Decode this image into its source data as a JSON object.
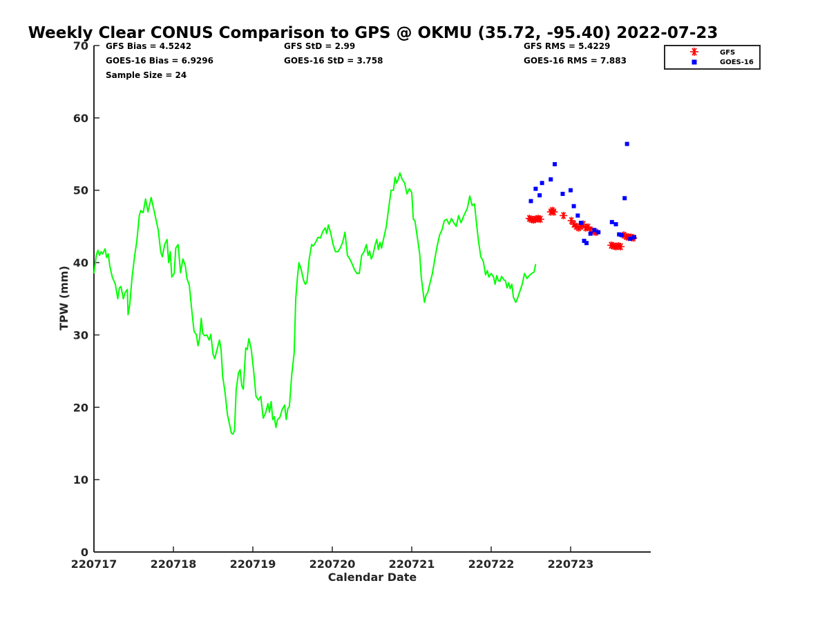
{
  "chart_data": {
    "type": "line",
    "title": "Weekly Clear CONUS Comparison to GPS @ OKMU (35.72, -95.40) 2022-07-23",
    "xlabel": "Calendar Date",
    "ylabel": "TPW (mm)",
    "x_unit": "day",
    "xlim": [
      220717,
      220723.96
    ],
    "ylim": [
      0,
      70
    ],
    "x_ticks": [
      {
        "value": 220717,
        "label": "220717"
      },
      {
        "value": 220718,
        "label": "220718"
      },
      {
        "value": 220719,
        "label": "220719"
      },
      {
        "value": 220720,
        "label": "220720"
      },
      {
        "value": 220721,
        "label": "220721"
      },
      {
        "value": 220722,
        "label": "220722"
      },
      {
        "value": 220723,
        "label": "220723"
      }
    ],
    "y_ticks": [
      0,
      10,
      20,
      30,
      40,
      50,
      60,
      70
    ],
    "grid": false,
    "legend_position": "top-right",
    "stats": {
      "gfs_bias": "GFS Bias = 4.5242",
      "goes_bias": "GOES-16 Bias = 6.9296",
      "sample_size": "Sample Size = 24",
      "gfs_std": "GFS StD = 2.99",
      "goes_std": "GOES-16 StD = 3.758",
      "gfs_rms": "GFS RMS = 5.4229",
      "goes_rms": "GOES-16 RMS = 7.883"
    },
    "series": [
      {
        "name": "",
        "kind": "line",
        "color": "#00ff00",
        "points": [
          [
            220717.0,
            38.5
          ],
          [
            220717.03,
            41.0
          ],
          [
            220717.05,
            41.7
          ],
          [
            220717.07,
            41.0
          ],
          [
            220717.09,
            41.5
          ],
          [
            220717.11,
            41.2
          ],
          [
            220717.14,
            41.9
          ],
          [
            220717.16,
            40.7
          ],
          [
            220717.18,
            41.2
          ],
          [
            220717.2,
            39.5
          ],
          [
            220717.23,
            38.0
          ],
          [
            220717.27,
            37.0
          ],
          [
            220717.3,
            35.0
          ],
          [
            220717.32,
            36.5
          ],
          [
            220717.34,
            36.7
          ],
          [
            220717.37,
            35.0
          ],
          [
            220717.39,
            35.8
          ],
          [
            220717.42,
            36.3
          ],
          [
            220717.43,
            32.8
          ],
          [
            220717.45,
            34.2
          ],
          [
            220717.48,
            38.0
          ],
          [
            220717.51,
            40.8
          ],
          [
            220717.54,
            43.0
          ],
          [
            220717.57,
            46.5
          ],
          [
            220717.59,
            47.2
          ],
          [
            220717.62,
            46.9
          ],
          [
            220717.65,
            48.8
          ],
          [
            220717.68,
            47.0
          ],
          [
            220717.72,
            49.0
          ],
          [
            220717.76,
            47.0
          ],
          [
            220717.81,
            44.5
          ],
          [
            220717.84,
            41.5
          ],
          [
            220717.86,
            40.8
          ],
          [
            220717.89,
            42.5
          ],
          [
            220717.92,
            43.2
          ],
          [
            220717.94,
            40.0
          ],
          [
            220717.96,
            41.5
          ],
          [
            220717.98,
            38.0
          ],
          [
            220718.01,
            38.5
          ],
          [
            220718.03,
            42.0
          ],
          [
            220718.06,
            42.5
          ],
          [
            220718.09,
            38.6
          ],
          [
            220718.12,
            40.5
          ],
          [
            220718.15,
            39.6
          ],
          [
            220718.17,
            37.8
          ],
          [
            220718.2,
            36.9
          ],
          [
            220718.23,
            33.5
          ],
          [
            220718.26,
            30.5
          ],
          [
            220718.29,
            30.0
          ],
          [
            220718.31,
            28.5
          ],
          [
            220718.33,
            29.5
          ],
          [
            220718.35,
            32.3
          ],
          [
            220718.37,
            30.2
          ],
          [
            220718.39,
            29.9
          ],
          [
            220718.42,
            30.0
          ],
          [
            220718.45,
            29.3
          ],
          [
            220718.47,
            30.1
          ],
          [
            220718.5,
            27.3
          ],
          [
            220718.52,
            26.7
          ],
          [
            220718.55,
            28.0
          ],
          [
            220718.58,
            29.3
          ],
          [
            220718.6,
            28.0
          ],
          [
            220718.62,
            24.3
          ],
          [
            220718.65,
            22.1
          ],
          [
            220718.68,
            19.0
          ],
          [
            220718.71,
            17.5
          ],
          [
            220718.73,
            16.4
          ],
          [
            220718.75,
            16.3
          ],
          [
            220718.77,
            16.8
          ],
          [
            220718.79,
            22.5
          ],
          [
            220718.82,
            24.8
          ],
          [
            220718.84,
            25.2
          ],
          [
            220718.86,
            23.0
          ],
          [
            220718.88,
            22.5
          ],
          [
            220718.91,
            28.2
          ],
          [
            220718.93,
            28.0
          ],
          [
            220718.95,
            29.5
          ],
          [
            220718.98,
            28.0
          ],
          [
            220719.01,
            25.0
          ],
          [
            220719.04,
            21.5
          ],
          [
            220719.07,
            21.0
          ],
          [
            220719.1,
            21.5
          ],
          [
            220719.13,
            18.5
          ],
          [
            220719.16,
            19.2
          ],
          [
            220719.19,
            20.5
          ],
          [
            220719.21,
            19.3
          ],
          [
            220719.23,
            20.8
          ],
          [
            220719.25,
            18.3
          ],
          [
            220719.27,
            18.7
          ],
          [
            220719.29,
            17.2
          ],
          [
            220719.31,
            18.3
          ],
          [
            220719.34,
            18.6
          ],
          [
            220719.37,
            19.7
          ],
          [
            220719.4,
            20.3
          ],
          [
            220719.42,
            18.3
          ],
          [
            220719.44,
            19.8
          ],
          [
            220719.46,
            20.1
          ],
          [
            220719.49,
            24.5
          ],
          [
            220719.52,
            27.5
          ],
          [
            220719.54,
            35.0
          ],
          [
            220719.56,
            37.8
          ],
          [
            220719.58,
            40.0
          ],
          [
            220719.61,
            39.0
          ],
          [
            220719.64,
            37.5
          ],
          [
            220719.66,
            37.0
          ],
          [
            220719.68,
            37.3
          ],
          [
            220719.71,
            40.5
          ],
          [
            220719.74,
            42.5
          ],
          [
            220719.76,
            42.3
          ],
          [
            220719.79,
            42.8
          ],
          [
            220719.82,
            43.5
          ],
          [
            220719.85,
            43.4
          ],
          [
            220719.88,
            44.3
          ],
          [
            220719.91,
            44.8
          ],
          [
            220719.93,
            44.0
          ],
          [
            220719.95,
            45.2
          ],
          [
            220719.98,
            44.1
          ],
          [
            220720.01,
            42.5
          ],
          [
            220720.04,
            41.5
          ],
          [
            220720.07,
            41.5
          ],
          [
            220720.1,
            42.0
          ],
          [
            220720.13,
            42.8
          ],
          [
            220720.16,
            44.2
          ],
          [
            220720.19,
            41.0
          ],
          [
            220720.22,
            40.5
          ],
          [
            220720.25,
            39.8
          ],
          [
            220720.28,
            39.0
          ],
          [
            220720.31,
            38.5
          ],
          [
            220720.34,
            38.5
          ],
          [
            220720.37,
            41.0
          ],
          [
            220720.4,
            41.5
          ],
          [
            220720.43,
            42.5
          ],
          [
            220720.45,
            41.0
          ],
          [
            220720.47,
            41.6
          ],
          [
            220720.49,
            40.5
          ],
          [
            220720.51,
            41.0
          ],
          [
            220720.54,
            42.5
          ],
          [
            220720.56,
            43.2
          ],
          [
            220720.58,
            41.8
          ],
          [
            220720.6,
            42.8
          ],
          [
            220720.62,
            42.0
          ],
          [
            220720.65,
            43.5
          ],
          [
            220720.68,
            45.0
          ],
          [
            220720.71,
            47.5
          ],
          [
            220720.74,
            50.0
          ],
          [
            220720.77,
            50.0
          ],
          [
            220720.79,
            51.8
          ],
          [
            220720.81,
            51.0
          ],
          [
            220720.83,
            51.5
          ],
          [
            220720.85,
            52.4
          ],
          [
            220720.88,
            51.5
          ],
          [
            220720.91,
            51.0
          ],
          [
            220720.94,
            49.5
          ],
          [
            220720.97,
            50.2
          ],
          [
            220721.0,
            49.7
          ],
          [
            220721.02,
            46.0
          ],
          [
            220721.04,
            45.8
          ],
          [
            220721.07,
            43.5
          ],
          [
            220721.1,
            41.2
          ],
          [
            220721.12,
            38.0
          ],
          [
            220721.14,
            36.2
          ],
          [
            220721.16,
            34.5
          ],
          [
            220721.18,
            35.5
          ],
          [
            220721.2,
            35.8
          ],
          [
            220721.23,
            37.2
          ],
          [
            220721.26,
            38.5
          ],
          [
            220721.29,
            40.5
          ],
          [
            220721.32,
            42.3
          ],
          [
            220721.35,
            43.8
          ],
          [
            220721.38,
            44.5
          ],
          [
            220721.41,
            45.8
          ],
          [
            220721.44,
            46.0
          ],
          [
            220721.47,
            45.3
          ],
          [
            220721.5,
            46.1
          ],
          [
            220721.53,
            45.5
          ],
          [
            220721.56,
            45.0
          ],
          [
            220721.59,
            46.5
          ],
          [
            220721.62,
            45.5
          ],
          [
            220721.66,
            46.6
          ],
          [
            220721.7,
            47.5
          ],
          [
            220721.73,
            49.2
          ],
          [
            220721.76,
            47.9
          ],
          [
            220721.79,
            48.1
          ],
          [
            220721.81,
            46.0
          ],
          [
            220721.84,
            43.0
          ],
          [
            220721.87,
            40.8
          ],
          [
            220721.9,
            40.2
          ],
          [
            220721.93,
            38.3
          ],
          [
            220721.95,
            38.9
          ],
          [
            220721.97,
            38.0
          ],
          [
            220722.0,
            38.5
          ],
          [
            220722.03,
            38.0
          ],
          [
            220722.05,
            37.0
          ],
          [
            220722.07,
            38.2
          ],
          [
            220722.09,
            37.5
          ],
          [
            220722.11,
            37.4
          ],
          [
            220722.13,
            38.1
          ],
          [
            220722.16,
            37.6
          ],
          [
            220722.18,
            37.5
          ],
          [
            220722.2,
            36.5
          ],
          [
            220722.22,
            37.2
          ],
          [
            220722.24,
            36.4
          ],
          [
            220722.26,
            37.0
          ],
          [
            220722.28,
            35.2
          ],
          [
            220722.31,
            34.5
          ],
          [
            220722.33,
            35.0
          ],
          [
            220722.36,
            36.0
          ],
          [
            220722.39,
            37.0
          ],
          [
            220722.42,
            38.5
          ],
          [
            220722.45,
            37.8
          ],
          [
            220722.48,
            38.2
          ],
          [
            220722.51,
            38.5
          ],
          [
            220722.54,
            38.7
          ],
          [
            220722.56,
            39.8
          ]
        ]
      },
      {
        "name": "GFS",
        "kind": "scatter",
        "marker": "asterisk",
        "color": "#ff0000",
        "points": [
          [
            220722.48,
            46.1
          ],
          [
            220722.5,
            46.0
          ],
          [
            220722.53,
            45.9
          ],
          [
            220722.56,
            46.0
          ],
          [
            220722.59,
            46.1
          ],
          [
            220722.62,
            46.0
          ],
          [
            220722.75,
            47.0
          ],
          [
            220722.77,
            47.2
          ],
          [
            220722.79,
            47.0
          ],
          [
            220722.91,
            46.5
          ],
          [
            220723.01,
            45.8
          ],
          [
            220723.04,
            45.3
          ],
          [
            220723.07,
            45.0
          ],
          [
            220723.1,
            44.8
          ],
          [
            220723.13,
            45.0
          ],
          [
            220723.16,
            45.3
          ],
          [
            220723.19,
            44.8
          ],
          [
            220723.22,
            44.9
          ],
          [
            220723.25,
            44.5
          ],
          [
            220723.29,
            44.3
          ],
          [
            220723.32,
            44.2
          ],
          [
            220723.51,
            42.4
          ],
          [
            220723.54,
            42.3
          ],
          [
            220723.57,
            42.2
          ],
          [
            220723.6,
            42.3
          ],
          [
            220723.63,
            42.2
          ],
          [
            220723.67,
            43.8
          ],
          [
            220723.7,
            43.6
          ],
          [
            220723.73,
            43.5
          ],
          [
            220723.76,
            43.5
          ],
          [
            220723.79,
            43.4
          ]
        ]
      },
      {
        "name": "GOES-16",
        "kind": "scatter",
        "marker": "square",
        "color": "#0000ff",
        "points": [
          [
            220722.5,
            48.5
          ],
          [
            220722.56,
            50.2
          ],
          [
            220722.61,
            49.3
          ],
          [
            220722.64,
            51.0
          ],
          [
            220722.75,
            51.5
          ],
          [
            220722.8,
            53.6
          ],
          [
            220722.9,
            49.5
          ],
          [
            220723.0,
            50.0
          ],
          [
            220723.04,
            47.8
          ],
          [
            220723.09,
            46.5
          ],
          [
            220723.13,
            45.5
          ],
          [
            220723.17,
            43.0
          ],
          [
            220723.2,
            42.7
          ],
          [
            220723.25,
            44.0
          ],
          [
            220723.3,
            44.5
          ],
          [
            220723.35,
            44.2
          ],
          [
            220723.52,
            45.6
          ],
          [
            220723.57,
            45.3
          ],
          [
            220723.61,
            43.9
          ],
          [
            220723.64,
            43.8
          ],
          [
            220723.68,
            48.9
          ],
          [
            220723.71,
            56.4
          ],
          [
            220723.75,
            43.3
          ],
          [
            220723.8,
            43.5
          ]
        ]
      }
    ]
  }
}
